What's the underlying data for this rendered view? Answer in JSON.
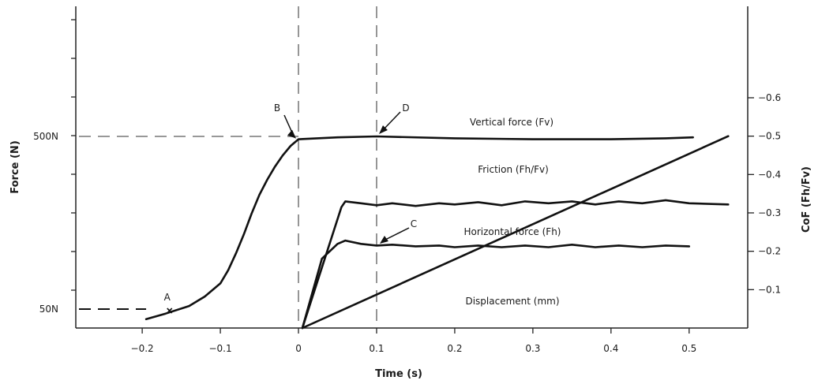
{
  "chart_data": {
    "type": "line",
    "title": "",
    "xlabel": "Time (s)",
    "ylabel_left": "Force (N)",
    "ylabel_right": "CoF (Fh/Fv)",
    "xlim": [
      -0.285,
      0.575
    ],
    "x_ticks": [
      -0.2,
      -0.1,
      0,
      0.1,
      0.2,
      0.3,
      0.4,
      0.5
    ],
    "x_tick_labels": [
      "−0.2",
      "−0.1",
      "0",
      "0.1",
      "0.2",
      "0.3",
      "0.4",
      "0.5"
    ],
    "left_axis_labels": [
      {
        "text": "50N",
        "value": 50
      },
      {
        "text": "500N",
        "value": 500
      }
    ],
    "right_axis_labels": [
      {
        "text": "−0.1",
        "value": 0.1
      },
      {
        "text": "−0.2",
        "value": 0.2
      },
      {
        "text": "−0.3",
        "value": 0.3
      },
      {
        "text": "−0.4",
        "value": 0.4
      },
      {
        "text": "−0.5",
        "value": 0.5
      },
      {
        "text": "−0.6",
        "value": 0.6
      }
    ],
    "grid": false,
    "series": [
      {
        "name": "Vertical force (Fv)",
        "x": [
          -0.195,
          -0.17,
          -0.14,
          -0.12,
          -0.1,
          -0.09,
          -0.08,
          -0.07,
          -0.06,
          -0.05,
          -0.04,
          -0.03,
          -0.02,
          -0.01,
          0.0,
          0.05,
          0.1,
          0.2,
          0.3,
          0.4,
          0.47,
          0.505
        ],
        "y": [
          0.03,
          0.06,
          0.1,
          0.15,
          0.22,
          0.29,
          0.38,
          0.48,
          0.59,
          0.69,
          0.77,
          0.84,
          0.9,
          0.95,
          0.985,
          0.995,
          1.0,
          0.99,
          0.985,
          0.985,
          0.99,
          0.995
        ]
      },
      {
        "name": "Friction (Fh/Fv)",
        "x": [
          0.005,
          0.055,
          0.06,
          0.08,
          0.1,
          0.12,
          0.15,
          0.18,
          0.2,
          0.23,
          0.26,
          0.29,
          0.32,
          0.35,
          0.38,
          0.41,
          0.44,
          0.47,
          0.5,
          0.55
        ],
        "y": [
          0.0,
          0.315,
          0.33,
          0.325,
          0.32,
          0.325,
          0.318,
          0.325,
          0.322,
          0.328,
          0.32,
          0.33,
          0.325,
          0.33,
          0.322,
          0.33,
          0.325,
          0.333,
          0.325,
          0.322
        ]
      },
      {
        "name": "Horizontal force (Fh)",
        "x": [
          0.005,
          0.03,
          0.05,
          0.06,
          0.08,
          0.1,
          0.12,
          0.15,
          0.18,
          0.2,
          0.23,
          0.26,
          0.29,
          0.32,
          0.35,
          0.38,
          0.41,
          0.44,
          0.47,
          0.5
        ],
        "y": [
          0.0,
          0.42,
          0.51,
          0.53,
          0.51,
          0.5,
          0.505,
          0.495,
          0.5,
          0.49,
          0.5,
          0.49,
          0.5,
          0.49,
          0.505,
          0.49,
          0.5,
          0.49,
          0.5,
          0.495
        ]
      },
      {
        "name": "Displacement (mm)",
        "x": [
          0.005,
          0.55
        ],
        "y": [
          0.0,
          0.5
        ]
      }
    ],
    "reference_lines": {
      "vertical_x": [
        0,
        0.1
      ],
      "horizontal_left_values": [
        50,
        500
      ]
    },
    "annotations": [
      {
        "label": "A",
        "x": -0.165,
        "y": 0.03
      },
      {
        "label": "B",
        "x": 0.0,
        "y": 0.985
      },
      {
        "label": "C",
        "x": 0.1,
        "y": 0.5
      },
      {
        "label": "D",
        "x": 0.1,
        "y": 1.0
      }
    ]
  }
}
